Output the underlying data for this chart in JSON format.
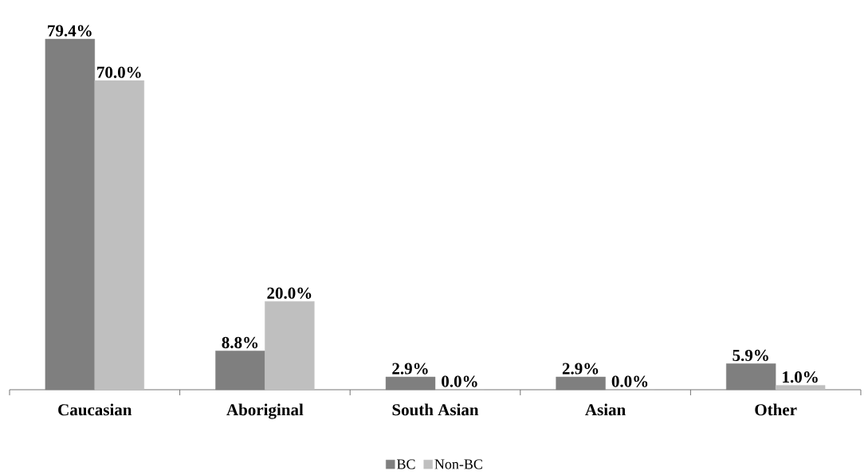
{
  "chart_data": {
    "type": "bar",
    "categories": [
      "Caucasian",
      "Aboriginal",
      "South Asian",
      "Asian",
      "Other"
    ],
    "series": [
      {
        "name": "BC",
        "color": "#7f7f7f",
        "values": [
          79.4,
          8.8,
          2.9,
          2.9,
          5.9
        ],
        "value_labels": [
          "79.4%",
          "8.8%",
          "2.9%",
          "2.9%",
          "5.9%"
        ]
      },
      {
        "name": "Non-BC",
        "color": "#bfbfbf",
        "values": [
          70.0,
          20.0,
          0.0,
          0.0,
          1.0
        ],
        "value_labels": [
          "70.0%",
          "20.0%",
          "0.0%",
          "0.0%",
          "1.0%"
        ]
      }
    ],
    "legend": "bottom"
  }
}
